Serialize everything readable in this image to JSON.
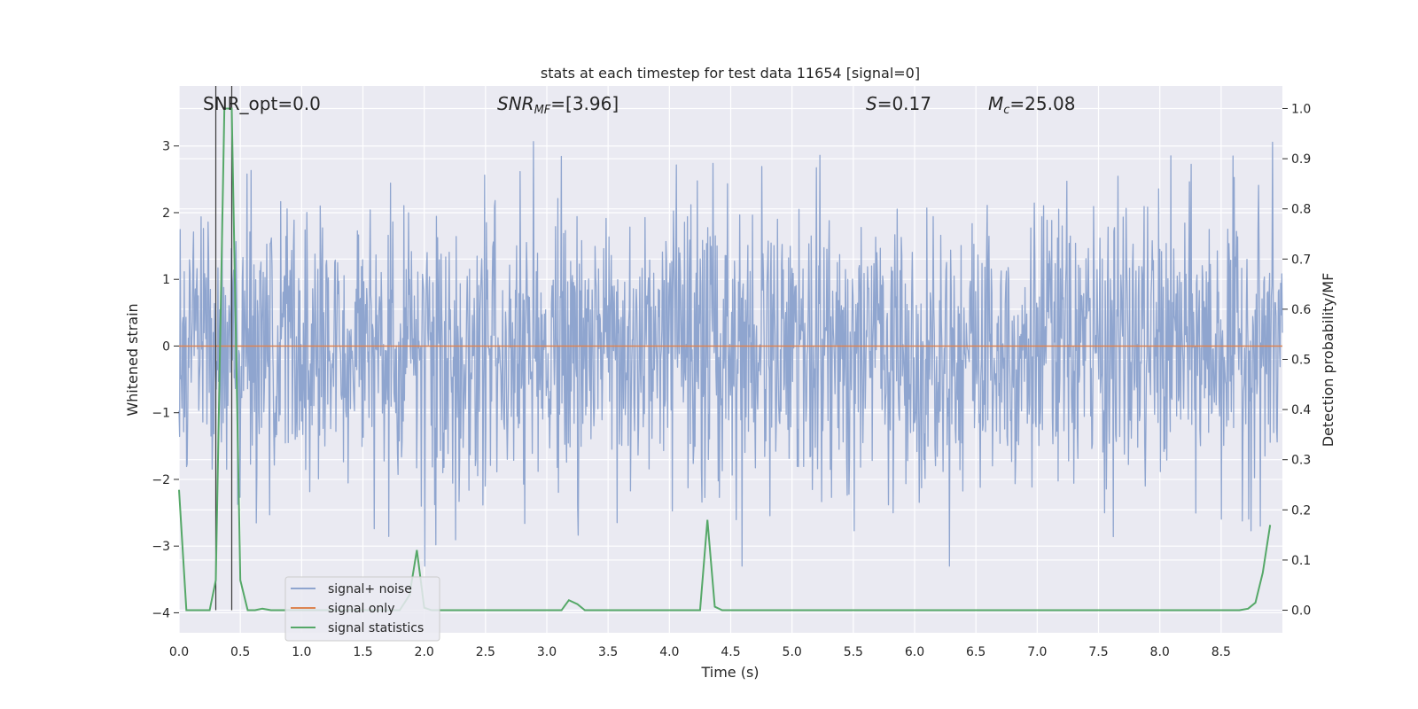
{
  "chart_data": {
    "type": "line",
    "title": "stats at each timestep for test data 11654 [signal=0]",
    "xlabel": "Time (s)",
    "ylabel_left": "Whitened strain",
    "ylabel_right": "Detection probability/MF",
    "xlim": [
      0.0,
      9.0
    ],
    "ylim_left": [
      -4.3,
      3.9
    ],
    "ylim_right": [
      -0.045,
      1.045
    ],
    "x_ticks": [
      "0.0",
      "0.5",
      "1.0",
      "1.5",
      "2.0",
      "2.5",
      "3.0",
      "3.5",
      "4.0",
      "4.5",
      "5.0",
      "5.5",
      "6.0",
      "6.5",
      "7.0",
      "7.5",
      "8.0",
      "8.5"
    ],
    "y_left_ticks": [
      "3",
      "2",
      "1",
      "0",
      "−1",
      "−2",
      "−3",
      "−4"
    ],
    "y_right_ticks": [
      "1.0",
      "0.9",
      "0.8",
      "0.7",
      "0.6",
      "0.5",
      "0.4",
      "0.3",
      "0.2",
      "0.1",
      "0.0"
    ],
    "grid": true,
    "legend_position": "lower-left",
    "annotations": {
      "snr_opt": "SNR_opt=0.0",
      "snr_mf_main": "SNR",
      "snr_mf_sub": "MF",
      "snr_mf_value": "=[3.96]",
      "s_main": "S",
      "s_value": "=0.17",
      "mc_main": "M",
      "mc_sub": "c",
      "mc_value": "=25.08"
    },
    "vertical_lines_x": [
      0.3,
      0.43
    ],
    "series": [
      {
        "name": "signal+ noise",
        "color": "#8fa5cf",
        "axis": "left",
        "description_range": [
          -3.3,
          3.5
        ]
      },
      {
        "name": "signal only",
        "color": "#dd8452",
        "axis": "left",
        "x": [
          0.0,
          9.0
        ],
        "values": [
          0.0,
          0.0
        ]
      },
      {
        "name": "signal statistics",
        "color": "#55a868",
        "axis": "right",
        "x": [
          0.0,
          0.06,
          0.25,
          0.3,
          0.37,
          0.43,
          0.5,
          0.56,
          0.62,
          0.68,
          0.75,
          1.8,
          1.88,
          1.94,
          2.0,
          2.06,
          3.12,
          3.18,
          3.25,
          3.31,
          4.25,
          4.31,
          4.37,
          4.43,
          8.65,
          8.72,
          8.78,
          8.84,
          8.9
        ],
        "values": [
          0.24,
          0.0,
          0.0,
          0.06,
          1.0,
          1.0,
          0.06,
          0.0,
          0.0,
          0.003,
          0.0,
          0.0,
          0.03,
          0.12,
          0.005,
          0.0,
          0.0,
          0.02,
          0.012,
          0.0,
          0.0,
          0.18,
          0.007,
          0.0,
          0.0,
          0.003,
          0.015,
          0.075,
          0.17
        ]
      }
    ]
  },
  "noise_seed": 11654
}
